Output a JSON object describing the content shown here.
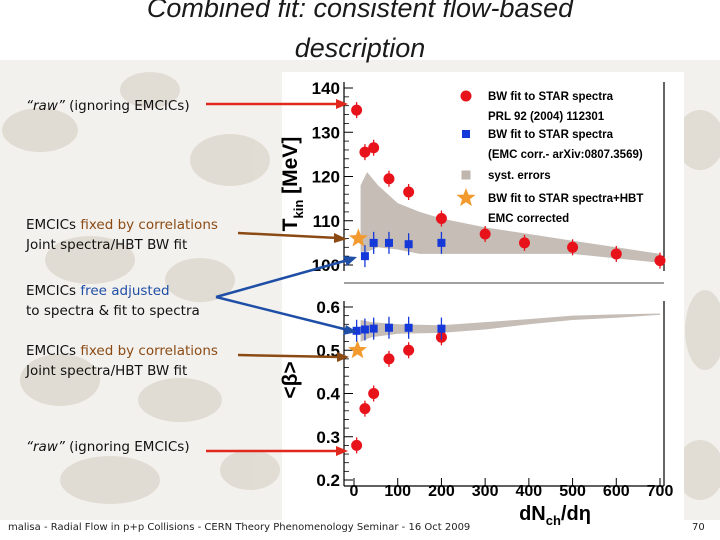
{
  "slide": {
    "title_line1": "Combined fit: consistent flow-based",
    "title_line2": "description",
    "footer": "malisa - Radial Flow in p+p Collisions - CERN Theory Phenomenology Seminar - 16 Oct 2009",
    "page_number": "70"
  },
  "annotations": {
    "raw_top": {
      "quote": "“raw”",
      "rest": " (ignoring EMCICs)"
    },
    "fixed_top": {
      "line1_a": "EMCICs ",
      "line1_b": "fixed by correlations",
      "line2": "Joint spectra/HBT BW fit"
    },
    "free": {
      "line1_a": "EMCICs ",
      "line1_b": "free adjusted",
      "line2": "to spectra & fit to spectra"
    },
    "fixed_bottom": {
      "line1_a": "EMCICs ",
      "line1_b": "fixed by correlations",
      "line2": "Joint spectra/HBT BW fit"
    },
    "raw_bottom": {
      "quote": "“raw”",
      "rest": " (ignoring EMCICs)"
    }
  },
  "colors": {
    "red_marker": "#e8121b",
    "blue_marker": "#1538d8",
    "band": "#bfb6ae",
    "star": "#f29a2e",
    "arrow_red": "#e0281e",
    "arrow_brown": "#8b4a14",
    "arrow_blue": "#1f4ea6"
  },
  "chart_data": [
    {
      "type": "scatter",
      "panel": "top",
      "ylabel": "T_kin [MeV]",
      "xlim": [
        0,
        700
      ],
      "ylim": [
        100,
        140
      ],
      "yticks": [
        100,
        110,
        120,
        130,
        140
      ],
      "legend_placement": "top-right",
      "legend": [
        {
          "marker": "red-circle",
          "text_lines": [
            "BW fit to STAR spectra",
            "PRL 92 (2004) 112301"
          ]
        },
        {
          "marker": "blue-square",
          "text_lines": [
            "BW fit to STAR spectra",
            "(EMC corr.- arXiv:0807.3569)"
          ]
        },
        {
          "marker": "gray-square",
          "text_lines": [
            "syst. errors"
          ]
        },
        {
          "marker": "orange-star",
          "text_lines": [
            "BW fit to STAR spectra+HBT",
            "EMC corrected"
          ]
        }
      ],
      "series": [
        {
          "name": "BW fit to STAR spectra, PRL 92 (2004) 112301",
          "marker": "red-circle",
          "x": [
            6,
            25,
            45,
            80,
            125,
            200,
            300,
            390,
            500,
            600,
            700
          ],
          "y": [
            135,
            125.5,
            126.5,
            119.5,
            116.5,
            110.5,
            107,
            105,
            104,
            102.5,
            101
          ]
        },
        {
          "name": "BW fit to STAR spectra (EMC corr.- arXiv:0807.3569)",
          "marker": "blue-square",
          "x": [
            25,
            45,
            80,
            125,
            200
          ],
          "y": [
            102,
            105,
            105,
            104.7,
            105
          ]
        },
        {
          "name": "BW fit to STAR spectra+HBT, EMC corrected",
          "marker": "orange-star",
          "x": [
            10
          ],
          "y": [
            106
          ]
        },
        {
          "name": "syst. errors",
          "marker": "band",
          "x": [
            15,
            30,
            55,
            100,
            150,
            200,
            300,
            400,
            500,
            600,
            700
          ],
          "y_upper": [
            118,
            121,
            118,
            114,
            112,
            110.5,
            108.5,
            107,
            105.5,
            104,
            102.5
          ],
          "y_lower": [
            103,
            103,
            104,
            103.5,
            102.5,
            102.5,
            102.5,
            102.5,
            102.5,
            101.5,
            100.5
          ]
        }
      ]
    },
    {
      "type": "scatter",
      "panel": "bottom",
      "ylabel": "<β>",
      "xlabel": "dN_ch/dη",
      "xlim": [
        0,
        700
      ],
      "xticks": [
        0,
        100,
        200,
        300,
        400,
        500,
        600,
        700
      ],
      "ylim": [
        0.2,
        0.6
      ],
      "yticks": [
        0.2,
        0.3,
        0.4,
        0.5,
        0.6
      ],
      "series": [
        {
          "name": "BW fit to STAR spectra, PRL 92 (2004) 112301",
          "marker": "red-circle",
          "x": [
            6,
            25,
            45,
            80,
            125,
            200
          ],
          "y": [
            0.28,
            0.365,
            0.4,
            0.48,
            0.5,
            0.53
          ]
        },
        {
          "name": "BW fit to STAR spectra (EMC corr.- arXiv:0807.3569)",
          "marker": "blue-square",
          "x": [
            6,
            25,
            45,
            80,
            125,
            200
          ],
          "y": [
            0.545,
            0.548,
            0.55,
            0.552,
            0.552,
            0.55
          ]
        },
        {
          "name": "BW fit to STAR spectra+HBT, EMC corrected",
          "marker": "orange-star",
          "x": [
            8
          ],
          "y": [
            0.5
          ]
        },
        {
          "name": "syst. errors",
          "marker": "band",
          "x": [
            15,
            40,
            100,
            200,
            300,
            400,
            500,
            600,
            700
          ],
          "y_upper": [
            0.57,
            0.565,
            0.56,
            0.558,
            0.565,
            0.572,
            0.58,
            0.583,
            0.585
          ],
          "y_lower": [
            0.52,
            0.53,
            0.538,
            0.54,
            0.548,
            0.56,
            0.57,
            0.575,
            0.582
          ]
        }
      ]
    }
  ]
}
